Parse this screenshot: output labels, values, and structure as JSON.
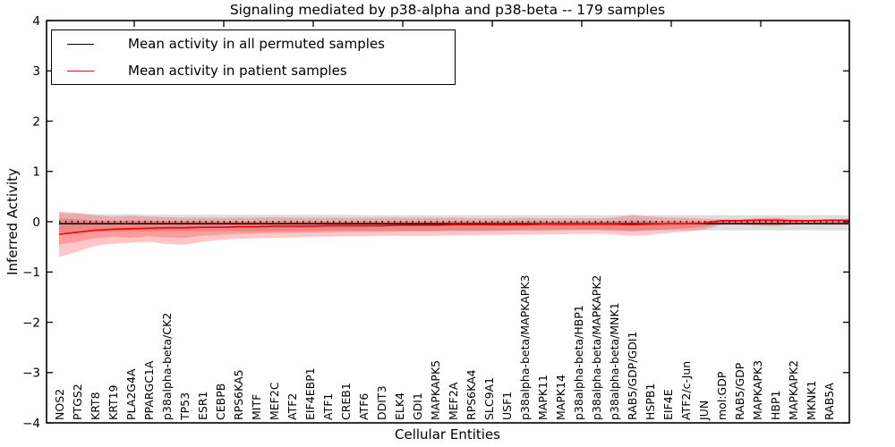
{
  "title": "Signaling mediated by p38-alpha and p38-beta -- 179 samples",
  "axes": {
    "xlabel": "Cellular Entities",
    "ylabel": "Inferred Activity",
    "ylim": [
      -4,
      4
    ],
    "ytick_values": [
      4,
      3,
      2,
      1,
      0,
      -1,
      -2,
      -3,
      -4
    ],
    "ytick_labels": [
      "4",
      "3",
      "2",
      "1",
      "0",
      "−1",
      "−2",
      "−3",
      "−4"
    ]
  },
  "legend": {
    "position": "upper-left",
    "items": [
      {
        "label": "Mean activity in all permuted samples",
        "color": "#000000"
      },
      {
        "label": "Mean activity in patient samples",
        "color": "#ff0000"
      }
    ]
  },
  "colors": {
    "patient_line": "#ff0000",
    "permuted_line": "#000000",
    "patient_band_fill": "#ff0000",
    "permuted_band_fill": "#999999",
    "frame": "#000000"
  },
  "chart_data": {
    "type": "line",
    "title": "Signaling mediated by p38-alpha and p38-beta -- 179 samples",
    "xlabel": "Cellular Entities",
    "ylabel": "Inferred Activity",
    "ylim": [
      -4,
      4
    ],
    "grid": false,
    "legend_position": "upper-left",
    "categories": [
      "NOS2",
      "PTGS2",
      "KRT8",
      "KRT19",
      "PLA2G4A",
      "PPARGC1A",
      "p38alpha-beta/CK2",
      "TP53",
      "ESR1",
      "CEBPB",
      "RPS6KA5",
      "MITF",
      "MEF2C",
      "ATF2",
      "EIF4EBP1",
      "ATF1",
      "CREB1",
      "ATF6",
      "DDIT3",
      "ELK4",
      "GDI1",
      "MAPKAPK5",
      "MEF2A",
      "RPS6KA4",
      "SLC9A1",
      "USF1",
      "p38alpha-beta/MAPKAPK3",
      "MAPK11",
      "MAPK14",
      "p38alpha-beta/HBP1",
      "p38alpha-beta/MAPKAPK2",
      "p38alpha-beta/MNK1",
      "RAB5/GDP/GDI1",
      "HSPB1",
      "EIF4E",
      "ATF2/c-Jun",
      "JUN",
      "mol:GDP",
      "RAB5/GDP",
      "MAPKAPK3",
      "HBP1",
      "MAPKAPK2",
      "MKNK1",
      "RAB5A"
    ],
    "series": [
      {
        "name": "zero reference",
        "color": "#000000",
        "style": "dotted",
        "width": 1.5,
        "values": [
          0,
          0,
          0,
          0,
          0,
          0,
          0,
          0,
          0,
          0,
          0,
          0,
          0,
          0,
          0,
          0,
          0,
          0,
          0,
          0,
          0,
          0,
          0,
          0,
          0,
          0,
          0,
          0,
          0,
          0,
          0,
          0,
          0,
          0,
          0,
          0,
          0,
          0,
          0,
          0,
          0,
          0,
          0,
          0
        ]
      },
      {
        "name": "Mean activity in all permuted samples",
        "color": "#000000",
        "style": "solid",
        "width": 1.5,
        "values": [
          -0.04,
          -0.04,
          -0.04,
          -0.04,
          -0.04,
          -0.04,
          -0.04,
          -0.04,
          -0.04,
          -0.04,
          -0.04,
          -0.04,
          -0.04,
          -0.04,
          -0.04,
          -0.04,
          -0.04,
          -0.04,
          -0.04,
          -0.04,
          -0.04,
          -0.04,
          -0.04,
          -0.04,
          -0.04,
          -0.04,
          -0.04,
          -0.04,
          -0.04,
          -0.04,
          -0.04,
          -0.04,
          -0.04,
          -0.04,
          -0.04,
          -0.04,
          -0.04,
          -0.04,
          -0.04,
          -0.04,
          -0.04,
          -0.04,
          -0.04,
          -0.04
        ]
      },
      {
        "name": "Mean activity in patient samples",
        "color": "#ff0000",
        "style": "solid",
        "width": 1.7,
        "values": [
          -0.25,
          -0.21,
          -0.17,
          -0.15,
          -0.14,
          -0.13,
          -0.12,
          -0.12,
          -0.11,
          -0.11,
          -0.1,
          -0.1,
          -0.09,
          -0.09,
          -0.09,
          -0.08,
          -0.08,
          -0.08,
          -0.08,
          -0.07,
          -0.07,
          -0.07,
          -0.06,
          -0.06,
          -0.06,
          -0.06,
          -0.06,
          -0.05,
          -0.05,
          -0.05,
          -0.05,
          -0.05,
          -0.06,
          -0.05,
          -0.04,
          -0.04,
          -0.03,
          0.02,
          0.02,
          0.03,
          0.03,
          0.02,
          0.02,
          0.03
        ]
      }
    ],
    "bands": [
      {
        "name": "permuted samples std band",
        "color": "#999999",
        "opacity": 0.32,
        "upper": [
          0.17,
          0.16,
          0.15,
          0.15,
          0.15,
          0.14,
          0.14,
          0.14,
          0.14,
          0.14,
          0.14,
          0.14,
          0.14,
          0.14,
          0.14,
          0.14,
          0.14,
          0.13,
          0.13,
          0.13,
          0.13,
          0.13,
          0.13,
          0.13,
          0.13,
          0.13,
          0.13,
          0.13,
          0.13,
          0.13,
          0.13,
          0.13,
          0.14,
          0.13,
          0.13,
          0.13,
          0.13,
          0.13,
          0.13,
          0.13,
          0.13,
          0.13,
          0.13,
          0.13
        ],
        "lower": [
          -0.22,
          -0.21,
          -0.2,
          -0.2,
          -0.2,
          -0.19,
          -0.19,
          -0.19,
          -0.19,
          -0.19,
          -0.19,
          -0.19,
          -0.19,
          -0.18,
          -0.18,
          -0.18,
          -0.18,
          -0.18,
          -0.18,
          -0.18,
          -0.18,
          -0.18,
          -0.18,
          -0.18,
          -0.18,
          -0.18,
          -0.17,
          -0.17,
          -0.17,
          -0.17,
          -0.17,
          -0.17,
          -0.18,
          -0.17,
          -0.17,
          -0.17,
          -0.17,
          -0.17,
          -0.17,
          -0.17,
          -0.17,
          -0.17,
          -0.17,
          -0.17
        ]
      },
      {
        "name": "patient samples outer std band",
        "color": "#ff0000",
        "opacity": 0.22,
        "upper": [
          0.2,
          0.18,
          0.13,
          0.1,
          0.12,
          0.1,
          0.09,
          0.08,
          0.08,
          0.08,
          0.08,
          0.08,
          0.09,
          0.08,
          0.08,
          0.08,
          0.08,
          0.08,
          0.08,
          0.08,
          0.08,
          0.08,
          0.08,
          0.07,
          0.07,
          0.07,
          0.08,
          0.07,
          0.07,
          0.07,
          0.07,
          0.08,
          0.13,
          0.1,
          0.08,
          0.08,
          0.06,
          0.05,
          0.05,
          0.07,
          0.08,
          0.05,
          0.04,
          0.05
        ],
        "lower": [
          -0.7,
          -0.6,
          -0.48,
          -0.44,
          -0.42,
          -0.4,
          -0.44,
          -0.46,
          -0.4,
          -0.36,
          -0.34,
          -0.33,
          -0.32,
          -0.31,
          -0.3,
          -0.3,
          -0.29,
          -0.29,
          -0.28,
          -0.28,
          -0.28,
          -0.28,
          -0.27,
          -0.27,
          -0.26,
          -0.26,
          -0.26,
          -0.25,
          -0.25,
          -0.24,
          -0.24,
          -0.25,
          -0.28,
          -0.26,
          -0.22,
          -0.2,
          -0.16,
          -0.06,
          -0.06,
          -0.08,
          -0.09,
          -0.06,
          -0.05,
          -0.06
        ]
      },
      {
        "name": "patient samples inner std band",
        "color": "#ff0000",
        "opacity": 0.22,
        "upper": [
          0.07,
          0.05,
          0.03,
          0.02,
          0.03,
          0.02,
          0.02,
          0.02,
          0.02,
          0.01,
          0.01,
          0.01,
          0.01,
          0.01,
          0.01,
          0.01,
          0.01,
          0.01,
          0.01,
          0.01,
          0.01,
          0.01,
          0.01,
          0.01,
          0.01,
          0.01,
          0.01,
          0.01,
          0.01,
          0.01,
          0.01,
          0.01,
          0.03,
          0.02,
          0.01,
          0.01,
          0.01,
          0.03,
          0.03,
          0.05,
          0.05,
          0.03,
          0.03,
          0.04
        ],
        "lower": [
          -0.45,
          -0.4,
          -0.33,
          -0.3,
          -0.32,
          -0.29,
          -0.31,
          -0.32,
          -0.28,
          -0.26,
          -0.24,
          -0.23,
          -0.22,
          -0.22,
          -0.21,
          -0.21,
          -0.2,
          -0.2,
          -0.2,
          -0.19,
          -0.19,
          -0.19,
          -0.18,
          -0.18,
          -0.18,
          -0.17,
          -0.17,
          -0.17,
          -0.16,
          -0.16,
          -0.16,
          -0.17,
          -0.19,
          -0.17,
          -0.15,
          -0.13,
          -0.1,
          -0.04,
          -0.04,
          -0.05,
          -0.06,
          -0.04,
          -0.03,
          -0.04
        ]
      }
    ]
  }
}
